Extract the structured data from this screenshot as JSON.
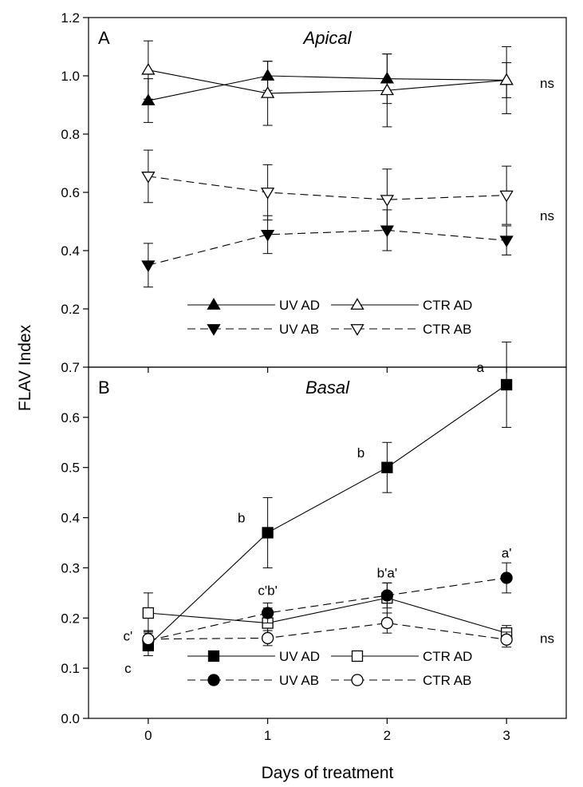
{
  "figure": {
    "ylabel": "FLAV Index",
    "xlabel": "Days of treatment"
  },
  "chart_data": [
    {
      "type": "line",
      "panel": "A",
      "title": "Apical",
      "x": [
        0,
        1,
        2,
        3
      ],
      "xticks": [
        "0",
        "1",
        "2",
        "3"
      ],
      "xlim": [
        -0.5,
        3.5
      ],
      "ylim": [
        0.0,
        1.2
      ],
      "yticks": [
        "0.2",
        "0.4",
        "0.6",
        "0.8",
        "1.0",
        "1.2"
      ],
      "ytick_values": [
        0.2,
        0.4,
        0.6,
        0.8,
        1.0,
        1.2
      ],
      "grid": false,
      "legend": "bottom",
      "series": [
        {
          "name": "UV AD",
          "marker": "triangle-up",
          "fill": "filled",
          "line": "solid",
          "values": [
            0.915,
            1.0,
            0.99,
            0.985
          ],
          "errors": [
            0.075,
            0.05,
            0.085,
            0.06
          ]
        },
        {
          "name": "CTR AD",
          "marker": "triangle-up",
          "fill": "open",
          "line": "solid",
          "values": [
            1.02,
            0.94,
            0.95,
            0.985
          ],
          "errors": [
            0.1,
            0.11,
            0.125,
            0.115
          ]
        },
        {
          "name": "UV AB",
          "marker": "triangle-down",
          "fill": "filled",
          "line": "dashed",
          "values": [
            0.35,
            0.455,
            0.47,
            0.435
          ],
          "errors": [
            0.075,
            0.065,
            0.07,
            0.05
          ]
        },
        {
          "name": "CTR AB",
          "marker": "triangle-down",
          "fill": "open",
          "line": "dashed",
          "values": [
            0.655,
            0.6,
            0.575,
            0.59
          ],
          "errors": [
            0.09,
            0.095,
            0.105,
            0.1
          ]
        }
      ],
      "annotations": [
        {
          "text": "ns",
          "x": 3.28,
          "y": 0.975
        },
        {
          "text": "ns",
          "x": 3.28,
          "y": 0.52
        }
      ]
    },
    {
      "type": "line",
      "panel": "B",
      "title": "Basal",
      "x": [
        0,
        1,
        2,
        3
      ],
      "xticks": [
        "0",
        "1",
        "2",
        "3"
      ],
      "xlim": [
        -0.5,
        3.5
      ],
      "ylim": [
        0.0,
        0.7
      ],
      "yticks": [
        "0.0",
        "0.1",
        "0.2",
        "0.3",
        "0.4",
        "0.5",
        "0.6",
        "0.7"
      ],
      "ytick_values": [
        0.0,
        0.1,
        0.2,
        0.3,
        0.4,
        0.5,
        0.6,
        0.7
      ],
      "grid": false,
      "legend": "bottom",
      "series": [
        {
          "name": "UV AD",
          "marker": "square",
          "fill": "filled",
          "line": "solid",
          "values": [
            0.145,
            0.37,
            0.5,
            0.665
          ],
          "errors": [
            0.02,
            0.07,
            0.05,
            0.085
          ]
        },
        {
          "name": "CTR AD",
          "marker": "square",
          "fill": "open",
          "line": "solid",
          "values": [
            0.21,
            0.19,
            0.24,
            0.17
          ],
          "errors": [
            0.04,
            0.03,
            0.03,
            0.015
          ]
        },
        {
          "name": "UV AB",
          "marker": "circle",
          "fill": "filled",
          "line": "dashed",
          "values": [
            0.155,
            0.21,
            0.245,
            0.28
          ],
          "errors": [
            0.02,
            0.02,
            0.025,
            0.03
          ]
        },
        {
          "name": "CTR AB",
          "marker": "circle",
          "fill": "open",
          "line": "dashed",
          "values": [
            0.158,
            0.16,
            0.19,
            0.157
          ],
          "errors": [
            0.015,
            0.015,
            0.02,
            0.015
          ]
        }
      ],
      "annotations": [
        {
          "text": "a",
          "x": 2.78,
          "y": 0.7
        },
        {
          "text": "b",
          "x": 1.78,
          "y": 0.53
        },
        {
          "text": "b",
          "x": 0.78,
          "y": 0.4
        },
        {
          "text": "a'",
          "x": 3.0,
          "y": 0.33
        },
        {
          "text": "b'a'",
          "x": 2.0,
          "y": 0.29
        },
        {
          "text": "c'b'",
          "x": 1.0,
          "y": 0.255
        },
        {
          "text": "c'",
          "x": -0.17,
          "y": 0.165
        },
        {
          "text": "c",
          "x": -0.17,
          "y": 0.1
        },
        {
          "text": "ns",
          "x": 3.28,
          "y": 0.16
        }
      ]
    }
  ]
}
